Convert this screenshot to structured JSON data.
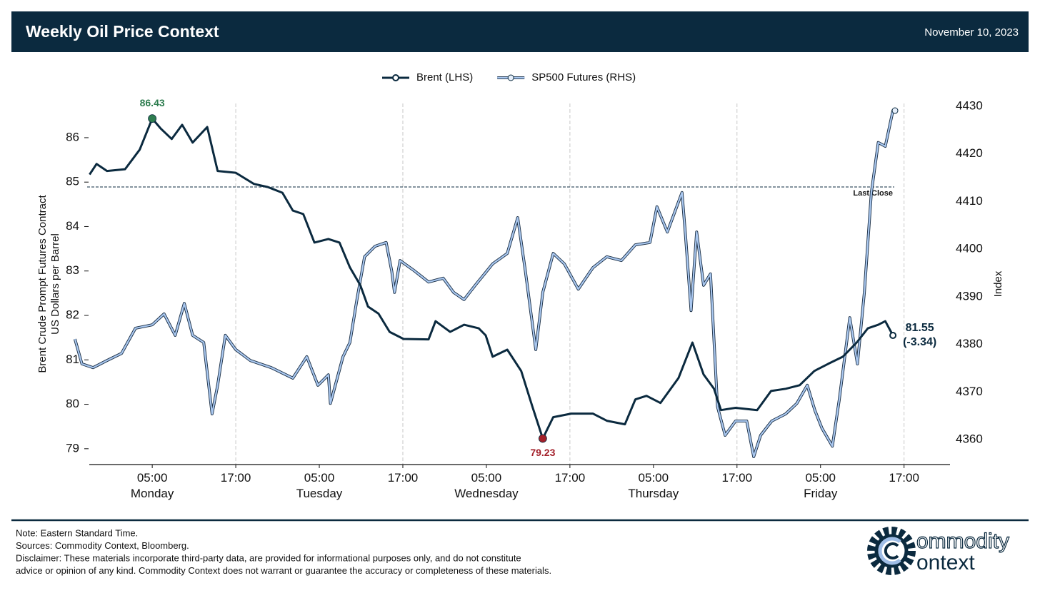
{
  "header": {
    "title": "Weekly Oil Price Context",
    "date": "November 10, 2023"
  },
  "chart_data": {
    "type": "line",
    "legend": "top",
    "ylabel": [
      "Brent Crude Prompt Futures Contract",
      "US Dollars per Barrel"
    ],
    "y2label": "Index",
    "xlim": [
      -6.3,
      119.6
    ],
    "xticks": [
      {
        "value": 5,
        "label": "05:00\nMonday"
      },
      {
        "value": 17,
        "label": "17:00"
      },
      {
        "value": 29,
        "label": "05:00\nTuesday"
      },
      {
        "value": 41,
        "label": "17:00"
      },
      {
        "value": 53,
        "label": "05:00\nWednesday"
      },
      {
        "value": 65,
        "label": "17:00"
      },
      {
        "value": 77,
        "label": "05:00\nThursday"
      },
      {
        "value": 89,
        "label": "17:00"
      },
      {
        "value": 101,
        "label": "05:00\nFriday"
      },
      {
        "value": 113,
        "label": "17:00"
      }
    ],
    "ylim": [
      78.66,
      86.85
    ],
    "yticks": [
      79,
      80,
      81,
      82,
      83,
      84,
      85,
      86
    ],
    "y2lim": [
      4354.9,
      4431.35
    ],
    "y2ticks": [
      4360,
      4370,
      4380,
      4390,
      4400,
      4410,
      4420,
      4430
    ],
    "reference_line": {
      "value": 84.89,
      "label": "Last Close"
    },
    "series": [
      {
        "name": "Brent (LHS)",
        "color": "#0b2a3f",
        "axis": "y",
        "x": [
          -4.0,
          -3.0,
          -1.5,
          1.1,
          3.2,
          5,
          6.2,
          7.8,
          9.3,
          10.8,
          12.9,
          14.4,
          17.0,
          19.6,
          21.6,
          23.7,
          25.2,
          26.7,
          28.3,
          30.3,
          31.9,
          33.4,
          34.9,
          36.0,
          37.5,
          39.1,
          41.1,
          44.7,
          45.7,
          47.8,
          49.8,
          51.9,
          52.9,
          53.9,
          56.0,
          58.0,
          59.6,
          61.1,
          62.6,
          65.2,
          68.3,
          70.3,
          72.9,
          74.4,
          76.0,
          78.0,
          80.6,
          82.6,
          84.2,
          85.7,
          86.7,
          88.8,
          91.9,
          93.9,
          96.0,
          98.0,
          100.1,
          102.1,
          104.2,
          106.2,
          107.8,
          109.3,
          110.3,
          111.4
        ],
        "values": [
          85.17,
          85.41,
          85.25,
          85.29,
          85.73,
          86.43,
          86.21,
          85.97,
          86.29,
          85.89,
          86.24,
          85.25,
          85.21,
          84.96,
          84.89,
          84.76,
          84.36,
          84.28,
          83.64,
          83.72,
          83.64,
          83.08,
          82.68,
          82.2,
          82.04,
          81.63,
          81.47,
          81.46,
          81.87,
          81.63,
          81.79,
          81.71,
          81.55,
          81.07,
          81.23,
          80.75,
          79.95,
          79.23,
          79.71,
          79.79,
          79.79,
          79.63,
          79.55,
          80.11,
          80.19,
          80.03,
          80.59,
          81.39,
          80.67,
          80.35,
          79.87,
          79.92,
          79.87,
          80.3,
          80.35,
          80.43,
          80.75,
          80.91,
          81.07,
          81.39,
          81.71,
          81.79,
          81.87,
          81.55
        ]
      },
      {
        "name": "SP500 Futures (RHS)",
        "color": "#a9c7ef",
        "axis": "y2",
        "x": [
          -6.1,
          -5.1,
          -3.5,
          -1.5,
          0.6,
          2.6,
          5,
          6.7,
          8.3,
          9.6,
          10.8,
          12.4,
          13.6,
          14.4,
          15.5,
          17.0,
          19.1,
          22.1,
          25.2,
          27.2,
          28.8,
          30.3,
          30.6,
          32.4,
          33.4,
          34.4,
          35.5,
          37.0,
          38.6,
          39.4,
          39.8,
          40.6,
          42.7,
          44.7,
          46.8,
          48.3,
          49.8,
          51.4,
          53.9,
          56.0,
          57.5,
          58.6,
          60.1,
          61.1,
          62.6,
          64.2,
          66.2,
          68.3,
          70.3,
          72.4,
          74.4,
          76.5,
          77.5,
          79.0,
          81.1,
          81.6,
          82.4,
          83.2,
          84.2,
          85.2,
          86.2,
          87.3,
          88.8,
          90.4,
          91.4,
          92.4,
          94.0,
          96.0,
          97.6,
          99.1,
          100.2,
          101.2,
          102.7,
          103.7,
          105.2,
          106.3,
          107.3,
          108.3,
          109.3,
          110.3,
          111.4,
          111.7
        ],
        "values": [
          4381.1,
          4375.9,
          4375.1,
          4376.6,
          4378.1,
          4383.4,
          4384.1,
          4386.4,
          4381.9,
          4388.6,
          4381.9,
          4380.4,
          4365.4,
          4371.4,
          4381.9,
          4378.9,
          4376.6,
          4375.1,
          4372.9,
          4377.4,
          4371.4,
          4373.6,
          4367.6,
          4377.4,
          4380.4,
          4389.4,
          4398.4,
          4400.6,
          4401.4,
          4395.4,
          4390.9,
          4397.6,
          4395.4,
          4393.1,
          4393.9,
          4390.9,
          4389.4,
          4392.4,
          4396.9,
          4399.1,
          4406.6,
          4395.4,
          4378.9,
          4390.9,
          4399.1,
          4396.9,
          4391.6,
          4396.1,
          4398.4,
          4397.6,
          4400.9,
          4401.4,
          4408.9,
          4403.6,
          4411.9,
          4402.9,
          4387.1,
          4403.6,
          4392.4,
          4394.8,
          4366.9,
          4360.9,
          4363.9,
          4363.9,
          4356.4,
          4360.9,
          4363.9,
          4365.4,
          4367.6,
          4371.4,
          4366.1,
          4362.4,
          4358.6,
          4368.4,
          4385.6,
          4375.9,
          4390.9,
          4411.9,
          4422.4,
          4421.6,
          4429.1,
          4429.1
        ]
      }
    ],
    "annotations": [
      {
        "text": "86.43",
        "x": 5,
        "y": 86.43,
        "color": "#2e7d4f",
        "position": "above"
      },
      {
        "text": "79.23",
        "x": 61.1,
        "y": 79.23,
        "color": "#a3202a",
        "position": "below"
      },
      {
        "text": "81.55\n(-3.34)",
        "x": 111.4,
        "y": 81.55,
        "color": "#0b2a3f",
        "position": "right"
      }
    ]
  },
  "footer": {
    "notes": [
      "Note: Eastern Standard Time.",
      "Sources: Commodity Context, Bloomberg.",
      "Disclaimer: These materials incorporate third-party data, are provided for informational purposes only, and do not constitute",
      "advice or opinion of any kind. Commodity Context does not warrant or guarantee the accuracy or completeness of these materials."
    ],
    "logo": [
      "ommodity",
      "ontext"
    ]
  }
}
